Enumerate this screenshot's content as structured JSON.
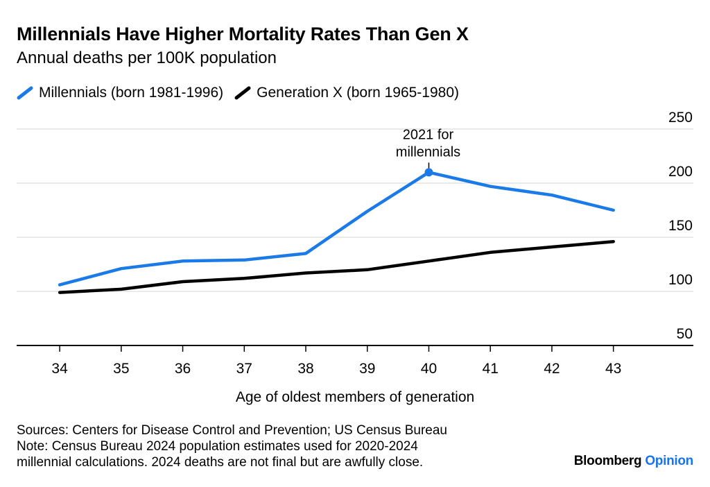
{
  "title": "Millennials Have Higher Mortality Rates Than Gen X",
  "subtitle": "Annual deaths per 100K population",
  "footer": {
    "sources": "Sources: Centers for Disease Control and Prevention; US Census Bureau",
    "note_line1": "Note: Census Bureau 2024 population estimates used for 2020-2024",
    "note_line2": "millennial calculations. 2024 deaths are not final but are awfully close."
  },
  "brand": {
    "name": "Bloomberg",
    "section": "Opinion"
  },
  "colors": {
    "millennials": "#1a7ae8",
    "genx": "#000000",
    "grid": "#e3e3e3",
    "axis": "#000000"
  },
  "chart_data": {
    "type": "line",
    "title": "Millennials Have Higher Mortality Rates Than Gen X",
    "subtitle": "Annual deaths per 100K population",
    "xlabel": "Age of oldest members of generation",
    "ylabel": "",
    "x": [
      34,
      35,
      36,
      37,
      38,
      39,
      40,
      41,
      42,
      43
    ],
    "xlim": [
      33.3,
      44.3
    ],
    "ylim": [
      50,
      250
    ],
    "yticks": [
      50,
      100,
      150,
      200,
      250
    ],
    "y_axis_side": "right",
    "grid": true,
    "legend_position": "top-left",
    "series": [
      {
        "name": "Millennials (born 1981-1996)",
        "color": "#1a7ae8",
        "values": [
          106,
          121,
          128,
          129,
          135,
          174,
          210,
          197,
          189,
          175
        ]
      },
      {
        "name": "Generation X (born 1965-1980)",
        "color": "#000000",
        "values": [
          99,
          102,
          109,
          112,
          117,
          120,
          128,
          136,
          141,
          146
        ]
      }
    ],
    "annotations": [
      {
        "series": 0,
        "x": 40,
        "y": 210,
        "lines": [
          "2021 for",
          "millennials"
        ]
      }
    ]
  }
}
